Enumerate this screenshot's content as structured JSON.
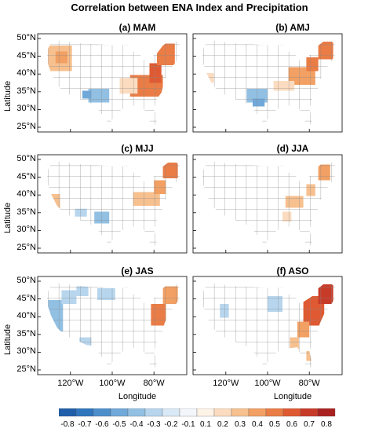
{
  "title": "Correlation between ENA Index and Precipitation",
  "panels": [
    {
      "id": "a",
      "label": "(a) MAM"
    },
    {
      "id": "b",
      "label": "(b) AMJ"
    },
    {
      "id": "c",
      "label": "(c) MJJ"
    },
    {
      "id": "d",
      "label": "(d) JJA"
    },
    {
      "id": "e",
      "label": "(e) JAS"
    },
    {
      "id": "f",
      "label": "(f) ASO"
    }
  ],
  "axes": {
    "ylabel": "Latitude",
    "xlabel": "Longitude",
    "lat_ticks": [
      "50°N",
      "45°N",
      "40°N",
      "35°N",
      "30°N",
      "25°N"
    ],
    "lon_ticks": [
      "120°W",
      "100°W",
      "80°W"
    ]
  },
  "colorbar": {
    "ticks": [
      "-0.8",
      "-0.7",
      "-0.6",
      "-0.5",
      "-0.4",
      "-0.3",
      "-0.2",
      "-0.1",
      "0.1",
      "0.2",
      "0.3",
      "0.4",
      "0.5",
      "0.6",
      "0.7",
      "0.8"
    ],
    "colors": [
      "#1f5ea8",
      "#2f76bd",
      "#4d8fcb",
      "#6fa8d9",
      "#92c0e3",
      "#b7d6ee",
      "#dae9f6",
      "#f3f7fb",
      "#fdf3e6",
      "#fbdcc0",
      "#f7c08f",
      "#f2a064",
      "#ea7c45",
      "#df5a32",
      "#c83a28",
      "#a8211f"
    ]
  }
}
